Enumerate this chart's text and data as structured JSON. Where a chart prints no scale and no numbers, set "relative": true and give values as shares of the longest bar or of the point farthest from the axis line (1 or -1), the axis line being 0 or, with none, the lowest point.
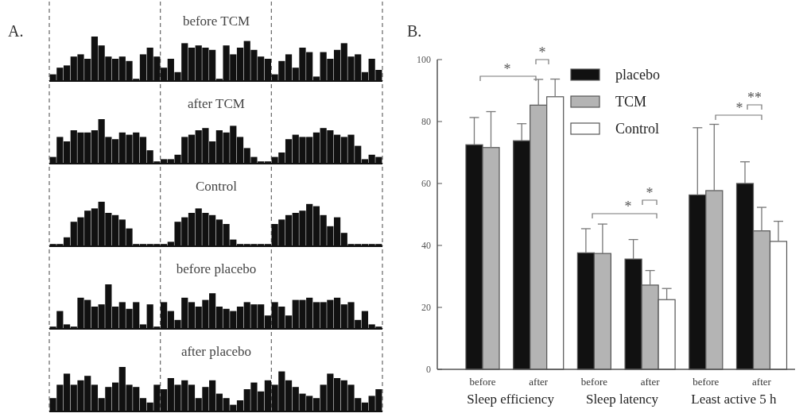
{
  "chart_data": [
    {
      "type": "bar",
      "title": "before TCM",
      "relative": true,
      "color": "#111111",
      "annotations": [
        "A."
      ],
      "categories": [
        null,
        null,
        null,
        null,
        null,
        null,
        null,
        null,
        null,
        null,
        null,
        null,
        null,
        null,
        null,
        null,
        null,
        null,
        null,
        null,
        null,
        null,
        null,
        null,
        null,
        null,
        null,
        null,
        null,
        null,
        null,
        null,
        null,
        null,
        null,
        null,
        null,
        null,
        null,
        null,
        null,
        null,
        null,
        null,
        null,
        null,
        null,
        null
      ],
      "values": [
        0.15,
        0.3,
        0.35,
        0.55,
        0.6,
        0.5,
        1,
        0.8,
        0.55,
        0.5,
        0.55,
        0.45,
        0.05,
        0.6,
        0.75,
        0.55,
        0.3,
        0.5,
        0.2,
        0.85,
        0.75,
        0.8,
        0.75,
        0.7,
        0.05,
        0.8,
        0.6,
        0.75,
        0.9,
        0.7,
        0.55,
        0.5,
        0.15,
        0.45,
        0.6,
        0.3,
        0.75,
        0.65,
        0.1,
        0.65,
        0.5,
        0.7,
        0.85,
        0.55,
        0.6,
        0.2,
        0.5,
        0.25
      ]
    },
    {
      "type": "bar",
      "title": "after  TCM",
      "relative": true,
      "color": "#111111",
      "categories": [
        null,
        null,
        null,
        null,
        null,
        null,
        null,
        null,
        null,
        null,
        null,
        null,
        null,
        null,
        null,
        null,
        null,
        null,
        null,
        null,
        null,
        null,
        null,
        null,
        null,
        null,
        null,
        null,
        null,
        null,
        null,
        null,
        null,
        null,
        null,
        null,
        null,
        null,
        null,
        null,
        null,
        null,
        null,
        null,
        null,
        null,
        null,
        null
      ],
      "values": [
        0.15,
        0.6,
        0.5,
        0.75,
        0.7,
        0.7,
        0.75,
        1,
        0.6,
        0.55,
        0.7,
        0.65,
        0.7,
        0.6,
        0.3,
        0.05,
        0.1,
        0.1,
        0.2,
        0.6,
        0.65,
        0.75,
        0.8,
        0.5,
        0.75,
        0.7,
        0.85,
        0.6,
        0.35,
        0.15,
        0.05,
        0.05,
        0.15,
        0.25,
        0.55,
        0.65,
        0.6,
        0.6,
        0.7,
        0.8,
        0.75,
        0.65,
        0.6,
        0.65,
        0.4,
        0.1,
        0.2,
        0.15
      ]
    },
    {
      "type": "bar",
      "title": "Control",
      "relative": true,
      "color": "#111111",
      "categories": [
        null,
        null,
        null,
        null,
        null,
        null,
        null,
        null,
        null,
        null,
        null,
        null,
        null,
        null,
        null,
        null,
        null,
        null,
        null,
        null,
        null,
        null,
        null,
        null,
        null,
        null,
        null,
        null,
        null,
        null,
        null,
        null,
        null,
        null,
        null,
        null,
        null,
        null,
        null,
        null,
        null,
        null,
        null,
        null,
        null,
        null,
        null,
        null
      ],
      "values": [
        0.05,
        0.05,
        0.2,
        0.55,
        0.65,
        0.8,
        0.85,
        1,
        0.75,
        0.7,
        0.6,
        0.4,
        0.05,
        0.05,
        0.05,
        0.05,
        0.05,
        0.1,
        0.55,
        0.65,
        0.75,
        0.85,
        0.75,
        0.7,
        0.6,
        0.5,
        0.15,
        0.05,
        0.05,
        0.05,
        0.05,
        0.05,
        0.5,
        0.6,
        0.7,
        0.75,
        0.8,
        0.95,
        0.9,
        0.7,
        0.45,
        0.65,
        0.3,
        0.05,
        0.05,
        0.05,
        0.05,
        0.05
      ]
    },
    {
      "type": "bar",
      "title": "before placebo",
      "relative": true,
      "color": "#111111",
      "categories": [
        null,
        null,
        null,
        null,
        null,
        null,
        null,
        null,
        null,
        null,
        null,
        null,
        null,
        null,
        null,
        null,
        null,
        null,
        null,
        null,
        null,
        null,
        null,
        null,
        null,
        null,
        null,
        null,
        null,
        null,
        null,
        null,
        null,
        null,
        null,
        null,
        null,
        null,
        null,
        null,
        null,
        null,
        null,
        null,
        null,
        null,
        null,
        null
      ],
      "values": [
        0.05,
        0.4,
        0.1,
        0.05,
        0.7,
        0.65,
        0.5,
        0.55,
        1,
        0.5,
        0.6,
        0.45,
        0.6,
        0.1,
        0.55,
        0.05,
        0.6,
        0.4,
        0.2,
        0.7,
        0.6,
        0.5,
        0.65,
        0.8,
        0.5,
        0.45,
        0.4,
        0.5,
        0.6,
        0.55,
        0.55,
        0.3,
        0.6,
        0.5,
        0.3,
        0.65,
        0.65,
        0.7,
        0.6,
        0.6,
        0.65,
        0.7,
        0.55,
        0.6,
        0.2,
        0.4,
        0.1,
        0.05
      ]
    },
    {
      "type": "bar",
      "title": "after placebo",
      "relative": true,
      "color": "#111111",
      "categories": [
        null,
        null,
        null,
        null,
        null,
        null,
        null,
        null,
        null,
        null,
        null,
        null,
        null,
        null,
        null,
        null,
        null,
        null,
        null,
        null,
        null,
        null,
        null,
        null,
        null,
        null,
        null,
        null,
        null,
        null,
        null,
        null,
        null,
        null,
        null,
        null,
        null,
        null,
        null,
        null,
        null,
        null,
        null,
        null,
        null,
        null,
        null,
        null
      ],
      "values": [
        0.3,
        0.6,
        0.85,
        0.6,
        0.7,
        0.8,
        0.6,
        0.3,
        0.55,
        0.65,
        1,
        0.6,
        0.55,
        0.3,
        0.2,
        0.6,
        0.5,
        0.75,
        0.6,
        0.7,
        0.6,
        0.3,
        0.55,
        0.7,
        0.4,
        0.3,
        0.15,
        0.25,
        0.5,
        0.65,
        0.45,
        0.7,
        0.6,
        0.9,
        0.7,
        0.55,
        0.4,
        0.35,
        0.3,
        0.6,
        0.85,
        0.75,
        0.7,
        0.6,
        0.3,
        0.2,
        0.35,
        0.5
      ]
    },
    {
      "type": "bar",
      "categories": [
        "before",
        "after",
        "before",
        "after",
        "before",
        "after"
      ],
      "ylim": [
        0,
        100
      ],
      "yticks": [
        0,
        20,
        40,
        60,
        80,
        100
      ],
      "legend": "top",
      "annotations": [
        "B.",
        "Sleep efficiency",
        "Sleep latency",
        "Least active 5 h",
        "*",
        "*",
        "*",
        "*",
        "*",
        "**"
      ],
      "series": [
        {
          "name": "placebo",
          "color": "#111111",
          "values": [
            72.5,
            73.8,
            37.6,
            35.6,
            56.3,
            60
          ],
          "errors": [
            [
              72.5,
              81.3
            ],
            [
              73.8,
              79.3
            ],
            [
              37.6,
              45.4
            ],
            [
              35.6,
              41.9
            ],
            [
              56.3,
              78
            ],
            [
              60,
              67
            ]
          ]
        },
        {
          "name": "TCM",
          "color": "#b4b4b4",
          "values": [
            71.6,
            85.3,
            37.4,
            27.2,
            57.7,
            44.7
          ],
          "errors": [
            [
              71.6,
              83.2
            ],
            [
              85.3,
              93.6
            ],
            [
              37.4,
              46.9
            ],
            [
              27.2,
              31.9
            ],
            [
              57.7,
              79.1
            ],
            [
              44.7,
              52.3
            ]
          ]
        },
        {
          "name": "Control",
          "color": "#ffffff",
          "values": [
            null,
            88,
            null,
            22.5,
            null,
            41.3
          ],
          "errors": [
            null,
            [
              88,
              93.7
            ],
            null,
            [
              22.5,
              26.1
            ],
            null,
            [
              41.3,
              47.8
            ]
          ]
        }
      ]
    }
  ]
}
